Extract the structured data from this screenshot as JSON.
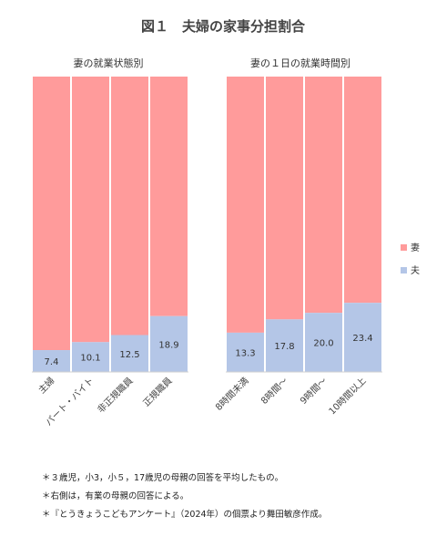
{
  "title": "図１　夫婦の家事分担割合",
  "colors": {
    "wife": "#ff9b9b",
    "husband": "#b4c6e7"
  },
  "chart_data": [
    {
      "type": "bar",
      "stacked": true,
      "percent": true,
      "title": "妻の就業状態別",
      "categories": [
        "主婦",
        "パート・バイト",
        "非正規職員",
        "正規職員"
      ],
      "series": [
        {
          "name": "夫",
          "values": [
            7.4,
            10.1,
            12.5,
            18.9
          ]
        },
        {
          "name": "妻",
          "values": [
            92.6,
            89.9,
            87.5,
            81.1
          ]
        }
      ],
      "ylim": [
        0,
        100
      ],
      "legend": "right"
    },
    {
      "type": "bar",
      "stacked": true,
      "percent": true,
      "title": "妻の１日の就業時間別",
      "categories": [
        "8時間未満",
        "8時間～",
        "9時間～",
        "10時間以上"
      ],
      "series": [
        {
          "name": "夫",
          "values": [
            13.3,
            17.8,
            20.0,
            23.4
          ]
        },
        {
          "name": "妻",
          "values": [
            86.7,
            82.2,
            80.0,
            76.6
          ]
        }
      ],
      "ylim": [
        0,
        100
      ],
      "legend": "right"
    }
  ],
  "legend": {
    "items": [
      "妻",
      "夫"
    ]
  },
  "notes": [
    "＊３歳児，小3，小５，17歳児の母親の回答を平均したもの。",
    "＊右側は，有業の母親の回答による。",
    "＊『とうきょうこどもアンケート』（2024年）の個票より舞田敏彦作成。"
  ]
}
